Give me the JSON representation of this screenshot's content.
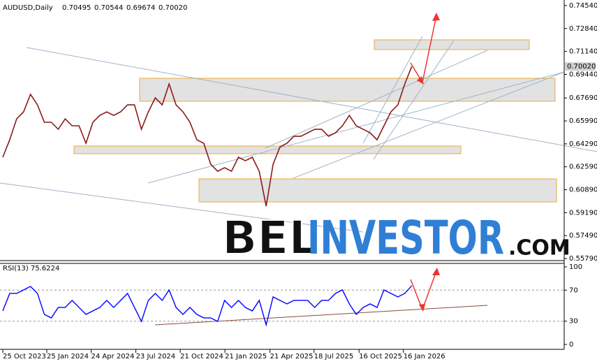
{
  "chart_data": [
    {
      "type": "line",
      "title": "AUDUSD,Daily",
      "ohlc_header": [
        "0.70495",
        "0.70544",
        "0.69674",
        "0.70020"
      ],
      "last_price": {
        "value": 0.7002,
        "label": "0.70020"
      },
      "watermark": [
        "BEL",
        "INVESTOR",
        ".COM"
      ],
      "x": [
        0,
        2,
        4,
        6,
        8,
        10,
        12,
        14,
        16,
        18,
        20,
        22,
        24,
        26,
        28,
        30,
        32,
        34,
        36,
        38,
        40,
        42,
        44,
        46,
        48,
        50,
        52,
        54,
        56,
        58,
        60,
        62,
        64,
        66,
        68,
        70,
        72,
        74,
        76,
        78,
        80,
        82,
        84,
        86,
        88,
        90,
        92,
        94,
        96,
        98,
        100,
        102,
        104,
        106,
        108,
        110,
        112,
        114,
        116,
        118
      ],
      "series": [
        {
          "name": "AUDUSD",
          "color": "#8b1a1a",
          "values": [
            0.633,
            0.6459,
            0.6614,
            0.6666,
            0.6796,
            0.6718,
            0.6589,
            0.6589,
            0.6537,
            0.6614,
            0.6563,
            0.6563,
            0.6433,
            0.6589,
            0.664,
            0.6666,
            0.664,
            0.6666,
            0.6718,
            0.6718,
            0.6537,
            0.6666,
            0.677,
            0.6718,
            0.6873,
            0.6718,
            0.6666,
            0.6589,
            0.6459,
            0.6433,
            0.6278,
            0.6226,
            0.6252,
            0.6226,
            0.633,
            0.6304,
            0.633,
            0.6226,
            0.5967,
            0.6278,
            0.6407,
            0.6433,
            0.6485,
            0.6485,
            0.6511,
            0.6537,
            0.6537,
            0.6485,
            0.6511,
            0.6563,
            0.664,
            0.6563,
            0.6537,
            0.6511,
            0.6459,
            0.6563,
            0.6666,
            0.6718,
            0.6873,
            0.7002
          ]
        }
      ],
      "xlim": [
        -0.4,
        162
      ],
      "ylim": [
        0.5569,
        0.7495
      ],
      "yticks": [
        {
          "value": 0.7454,
          "label": "0.74540"
        },
        {
          "value": 0.7284,
          "label": "0.72840"
        },
        {
          "value": 0.7114,
          "label": "0.71140"
        },
        {
          "value": 0.6944,
          "label": "0.69440"
        },
        {
          "value": 0.6769,
          "label": "0.67690"
        },
        {
          "value": 0.6599,
          "label": "0.65990"
        },
        {
          "value": 0.6429,
          "label": "0.64290"
        },
        {
          "value": 0.6259,
          "label": "0.62590"
        },
        {
          "value": 0.6089,
          "label": "0.60890"
        },
        {
          "value": 0.5919,
          "label": "0.59190"
        },
        {
          "value": 0.5749,
          "label": "0.57490"
        },
        {
          "value": 0.5579,
          "label": "0.55790"
        }
      ],
      "xticks": [
        {
          "value": 0,
          "label": "25 Oct 2023"
        },
        {
          "value": 12.7,
          "label": "25 Jan 2024"
        },
        {
          "value": 25.5,
          "label": "24 Apr 2024"
        },
        {
          "value": 38.4,
          "label": "23 Jul 2024"
        },
        {
          "value": 51.2,
          "label": "21 Oct 2024"
        },
        {
          "value": 64.1,
          "label": "21 Jan 2025"
        },
        {
          "value": 77.1,
          "label": "21 Apr 2025"
        },
        {
          "value": 89.8,
          "label": "18 Jul 2025"
        },
        {
          "value": 102.8,
          "label": "16 Oct 2025"
        },
        {
          "value": 115.6,
          "label": "16 Jan 2026"
        }
      ]
    },
    {
      "type": "line",
      "title": "RSI(13) 75.6224",
      "x": [
        0,
        2,
        4,
        6,
        8,
        10,
        12,
        14,
        16,
        18,
        20,
        22,
        24,
        26,
        28,
        30,
        32,
        34,
        36,
        38,
        40,
        42,
        44,
        46,
        48,
        50,
        52,
        54,
        56,
        58,
        60,
        62,
        64,
        66,
        68,
        70,
        72,
        74,
        76,
        78,
        80,
        82,
        84,
        86,
        88,
        90,
        92,
        94,
        96,
        98,
        100,
        102,
        104,
        106,
        108,
        110,
        112,
        114,
        116,
        118
      ],
      "series": [
        {
          "name": "RSI",
          "color": "#0000ff",
          "values": [
            43.2,
            65.8,
            65.8,
            70.3,
            74.8,
            65.8,
            38.7,
            34.2,
            47.7,
            47.7,
            56.8,
            47.7,
            38.7,
            43.2,
            47.7,
            56.8,
            47.7,
            56.8,
            65.8,
            47.7,
            29.7,
            56.8,
            65.8,
            56.8,
            70.3,
            47.7,
            38.7,
            47.7,
            38.7,
            34.2,
            34.2,
            29.7,
            56.8,
            47.7,
            56.8,
            47.7,
            43.2,
            56.8,
            25.2,
            61.3,
            56.8,
            52.3,
            56.8,
            56.8,
            56.8,
            47.7,
            56.8,
            56.8,
            65.8,
            70.3,
            52.3,
            38.7,
            47.7,
            52.3,
            47.7,
            70.3,
            65.8,
            61.3,
            65.8,
            75.6
          ]
        }
      ],
      "xlim": [
        -0.4,
        162
      ],
      "ylim": [
        -6.3,
        104.5
      ],
      "yticks": [
        100,
        70,
        30,
        0
      ],
      "dashed_levels": [
        70,
        30
      ]
    }
  ]
}
